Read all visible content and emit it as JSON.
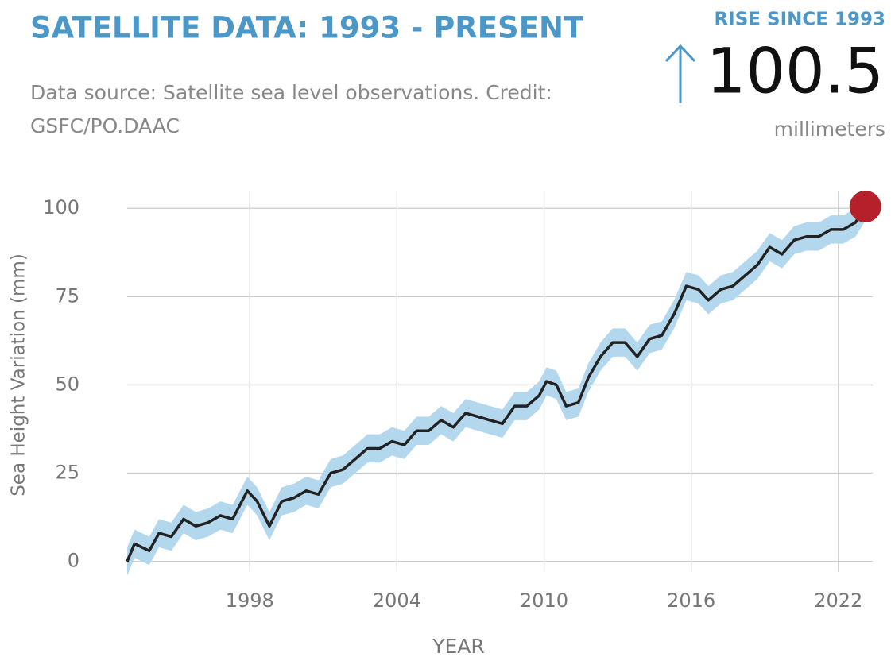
{
  "headline": {
    "label": "RISE SINCE 1993",
    "value": 100.5,
    "unit": "millimeters"
  },
  "chart_data": {
    "type": "line",
    "title": "SATELLITE DATA: 1993 - PRESENT",
    "subtitle": "Data source: Satellite sea level observations. Credit: GSFC/PO.DAAC",
    "x_label": "YEAR",
    "y_label": "Sea Height Variation (mm)",
    "x": [
      1993.0,
      1993.3,
      1993.9,
      1994.3,
      1994.8,
      1995.3,
      1995.8,
      1996.3,
      1996.8,
      1997.3,
      1997.9,
      1998.3,
      1998.8,
      1999.3,
      1999.8,
      2000.3,
      2000.8,
      2001.3,
      2001.8,
      2002.3,
      2002.8,
      2003.3,
      2003.8,
      2004.3,
      2004.8,
      2005.3,
      2005.8,
      2006.3,
      2006.8,
      2007.3,
      2007.8,
      2008.3,
      2008.8,
      2009.3,
      2009.8,
      2010.1,
      2010.5,
      2010.9,
      2011.4,
      2011.8,
      2012.3,
      2012.8,
      2013.3,
      2013.8,
      2014.3,
      2014.8,
      2015.3,
      2015.8,
      2016.3,
      2016.7,
      2017.2,
      2017.7,
      2018.2,
      2018.7,
      2019.2,
      2019.7,
      2020.2,
      2020.7,
      2021.2,
      2021.7,
      2022.2,
      2022.7,
      2023.1
    ],
    "values": [
      0,
      5,
      3,
      8,
      7,
      12,
      10,
      11,
      13,
      12,
      20,
      17,
      10,
      17,
      18,
      20,
      19,
      25,
      26,
      29,
      32,
      32,
      34,
      33,
      37,
      37,
      40,
      38,
      42,
      41,
      40,
      39,
      44,
      44,
      47,
      51,
      50,
      44,
      45,
      52,
      58,
      62,
      62,
      58,
      63,
      64,
      70,
      78,
      77,
      74,
      77,
      78,
      81,
      84,
      89,
      87,
      91,
      92,
      92,
      94,
      94,
      96,
      100.5
    ],
    "errors": [
      4,
      4,
      4,
      4,
      4,
      4,
      4,
      4,
      4,
      4,
      4,
      4,
      4,
      4,
      4,
      4,
      4,
      4,
      4,
      4,
      4,
      4,
      4,
      4,
      4,
      4,
      4,
      4,
      4,
      4,
      4,
      4,
      4,
      4,
      4,
      4,
      4,
      4,
      4,
      4,
      4,
      4,
      4,
      4,
      4,
      4,
      4,
      4,
      4,
      4,
      4,
      4,
      4,
      4,
      4,
      4,
      4,
      4,
      4,
      4,
      4,
      4,
      4
    ],
    "color": "#222222",
    "band_color": "#b3d7ec",
    "marker_color": "#b5202a",
    "xlim": [
      1993,
      2023.4
    ],
    "ylim": [
      -3,
      105
    ],
    "xticks": [
      1998,
      2004,
      2010,
      2016,
      2022
    ],
    "yticks": [
      0,
      25,
      50,
      75,
      100
    ],
    "grid": true
  }
}
